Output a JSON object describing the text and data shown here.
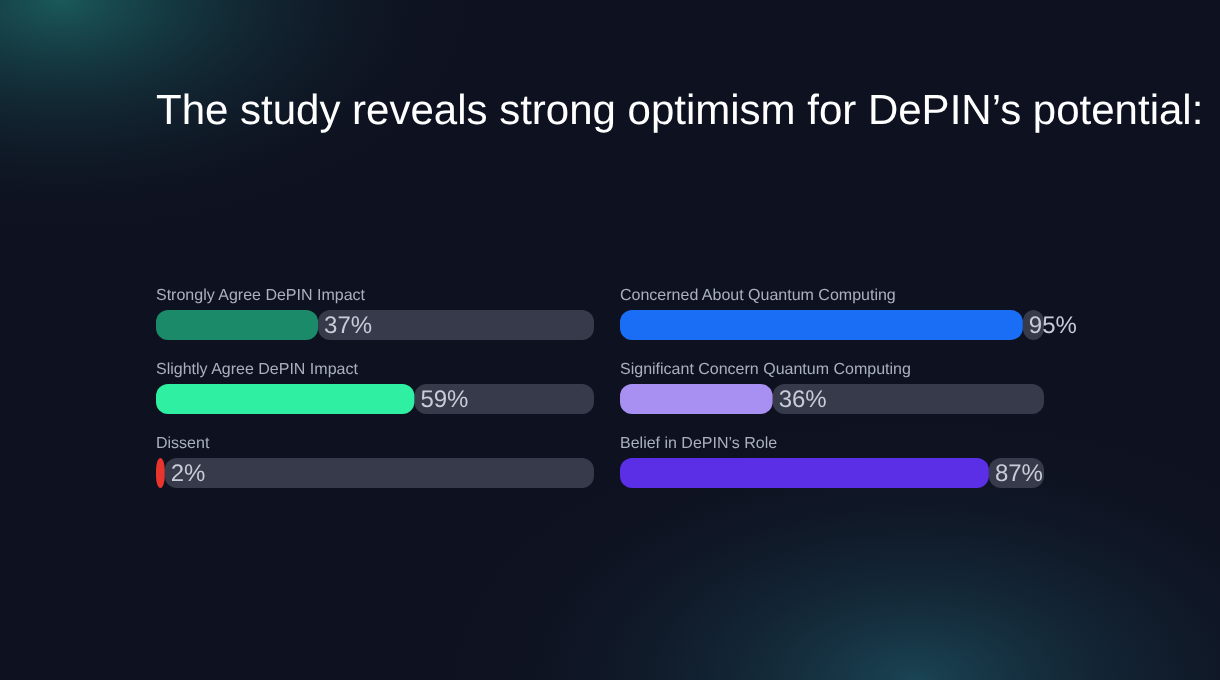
{
  "chart_data": [
    {
      "type": "bar",
      "orientation": "horizontal",
      "title": "The study reveals strong optimism for DePIN’s potential:",
      "categories": [
        "Strongly Agree DePIN Impact",
        "Slightly Agree DePIN Impact",
        "Dissent"
      ],
      "values": [
        37,
        59,
        2
      ],
      "colors": [
        "#1b8a68",
        "#2ff0a2",
        "#e8352e"
      ],
      "xlim": [
        0,
        100
      ],
      "value_labels": [
        "37%",
        "59%",
        "2%"
      ]
    },
    {
      "type": "bar",
      "orientation": "horizontal",
      "categories": [
        "Concerned About Quantum Computing",
        "Significant Concern Quantum Computing",
        "Belief in DePIN’s Role"
      ],
      "values": [
        95,
        36,
        87
      ],
      "colors": [
        "#1a6ef5",
        "#a88ff2",
        "#5a2fe6"
      ],
      "xlim": [
        0,
        100
      ],
      "value_labels": [
        "95%",
        "36%",
        "87%"
      ]
    }
  ]
}
